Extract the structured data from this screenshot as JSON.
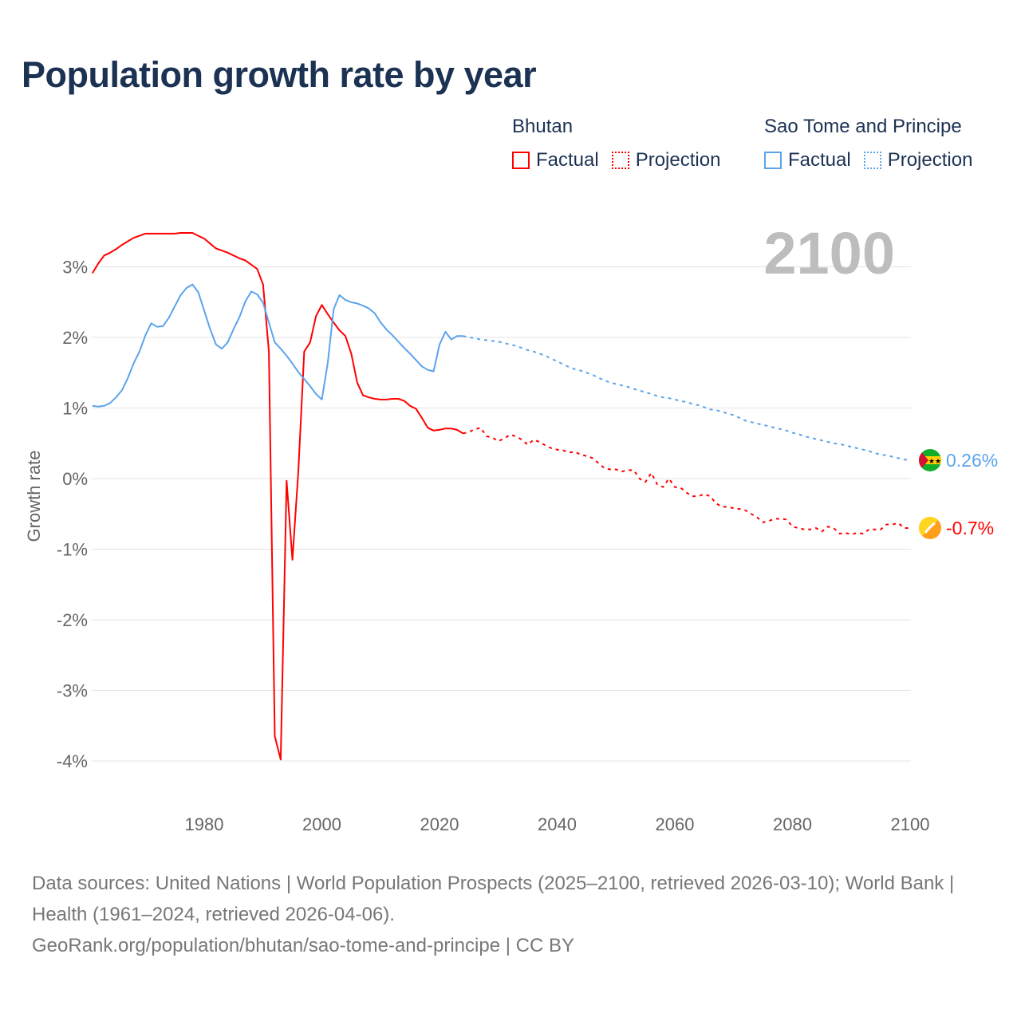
{
  "title": "Population growth rate by year",
  "legend": {
    "groups": [
      {
        "name": "Bhutan",
        "color": "#ff0000",
        "factual": "Factual",
        "projection": "Projection"
      },
      {
        "name": "Sao Tome and Principe",
        "color": "#5ba4ec",
        "factual": "Factual",
        "projection": "Projection"
      }
    ]
  },
  "year_label": "2100",
  "chart_data": {
    "type": "line",
    "title": "Population growth rate by year",
    "xlabel": "",
    "ylabel": "Growth rate",
    "xlim": [
      1961,
      2100
    ],
    "ylim": [
      -4.4,
      3.8
    ],
    "x_ticks": [
      1980,
      2000,
      2020,
      2040,
      2060,
      2080,
      2100
    ],
    "x_tick_labels": [
      "1980",
      "2000",
      "2020",
      "2040",
      "2060",
      "2080",
      "2100"
    ],
    "y_ticks": [
      3,
      2,
      1,
      0,
      -1,
      -2,
      -3,
      -4
    ],
    "y_tick_labels": [
      "3%",
      "2%",
      "1%",
      "0%",
      "-1%",
      "-2%",
      "-3%",
      "-4%"
    ],
    "grid": true,
    "legend_position": "top-right",
    "series": [
      {
        "name": "Bhutan",
        "color": "#ff0000",
        "end_label": "-0.7%",
        "factual": {
          "start_year": 1961,
          "values": [
            2.91,
            3.05,
            3.16,
            3.2,
            3.25,
            3.31,
            3.36,
            3.41,
            3.44,
            3.47,
            3.47,
            3.47,
            3.47,
            3.47,
            3.47,
            3.48,
            3.48,
            3.48,
            3.44,
            3.4,
            3.33,
            3.26,
            3.23,
            3.2,
            3.16,
            3.12,
            3.09,
            3.03,
            2.97,
            2.75,
            1.8,
            -3.65,
            -3.98,
            -0.03,
            -1.15,
            0.1,
            1.8,
            1.93,
            2.3,
            2.46,
            2.33,
            2.21,
            2.1,
            2.02,
            1.77,
            1.36,
            1.18,
            1.15,
            1.13,
            1.12,
            1.12,
            1.13,
            1.13,
            1.1,
            1.03,
            0.99,
            0.86,
            0.72,
            0.68,
            0.69,
            0.71,
            0.71,
            0.69,
            0.64
          ]
        },
        "projection": {
          "start_year": 2024,
          "values": [
            0.64,
            0.66,
            0.7,
            0.72,
            0.6,
            0.58,
            0.53,
            0.57,
            0.62,
            0.6,
            0.55,
            0.48,
            0.55,
            0.52,
            0.47,
            0.43,
            0.41,
            0.4,
            0.37,
            0.38,
            0.34,
            0.32,
            0.29,
            0.22,
            0.15,
            0.13,
            0.13,
            0.1,
            0.12,
            0.12,
            0.0,
            -0.05,
            0.08,
            -0.08,
            -0.12,
            0.0,
            -0.12,
            -0.13,
            -0.2,
            -0.25,
            -0.25,
            -0.22,
            -0.25,
            -0.35,
            -0.4,
            -0.4,
            -0.42,
            -0.43,
            -0.45,
            -0.5,
            -0.55,
            -0.62,
            -0.6,
            -0.57,
            -0.57,
            -0.58,
            -0.68,
            -0.7,
            -0.72,
            -0.72,
            -0.7,
            -0.75,
            -0.68,
            -0.7,
            -0.78,
            -0.77,
            -0.79,
            -0.77,
            -0.78,
            -0.72,
            -0.72,
            -0.72,
            -0.65,
            -0.65,
            -0.63,
            -0.7,
            -0.7
          ]
        }
      },
      {
        "name": "Sao Tome and Principe",
        "color": "#5ba4ec",
        "end_label": "0.26%",
        "factual": {
          "start_year": 1961,
          "values": [
            1.03,
            1.02,
            1.03,
            1.07,
            1.15,
            1.25,
            1.42,
            1.63,
            1.8,
            2.03,
            2.2,
            2.15,
            2.16,
            2.28,
            2.44,
            2.6,
            2.7,
            2.75,
            2.64,
            2.38,
            2.12,
            1.9,
            1.84,
            1.93,
            2.12,
            2.29,
            2.51,
            2.65,
            2.61,
            2.49,
            2.21,
            1.93,
            1.84,
            1.74,
            1.63,
            1.51,
            1.41,
            1.31,
            1.2,
            1.12,
            1.64,
            2.4,
            2.6,
            2.53,
            2.5,
            2.48,
            2.45,
            2.41,
            2.34,
            2.21,
            2.11,
            2.03,
            1.94,
            1.85,
            1.77,
            1.68,
            1.59,
            1.54,
            1.52,
            1.9,
            2.08,
            1.97,
            2.02,
            2.02
          ]
        },
        "projection": {
          "start_year": 2024,
          "values": [
            2.02,
            2.0,
            1.99,
            1.97,
            1.96,
            1.95,
            1.94,
            1.92,
            1.9,
            1.88,
            1.85,
            1.82,
            1.8,
            1.77,
            1.74,
            1.7,
            1.66,
            1.62,
            1.58,
            1.55,
            1.53,
            1.5,
            1.47,
            1.43,
            1.39,
            1.36,
            1.34,
            1.32,
            1.3,
            1.27,
            1.25,
            1.22,
            1.2,
            1.17,
            1.15,
            1.14,
            1.12,
            1.1,
            1.08,
            1.06,
            1.04,
            1.01,
            0.98,
            0.97,
            0.95,
            0.92,
            0.9,
            0.86,
            0.82,
            0.8,
            0.78,
            0.76,
            0.74,
            0.72,
            0.7,
            0.68,
            0.65,
            0.63,
            0.6,
            0.58,
            0.56,
            0.54,
            0.52,
            0.5,
            0.49,
            0.47,
            0.45,
            0.43,
            0.41,
            0.39,
            0.36,
            0.34,
            0.33,
            0.31,
            0.29,
            0.27,
            0.26
          ]
        }
      }
    ]
  },
  "footer": {
    "sources": "Data sources: United Nations | World Population Prospects (2025–2100, retrieved 2026-03-10); World Bank | Health (1961–2024, retrieved 2026-04-06).",
    "link": "GeoRank.org/population/bhutan/sao-tome-and-principe | CC BY"
  }
}
